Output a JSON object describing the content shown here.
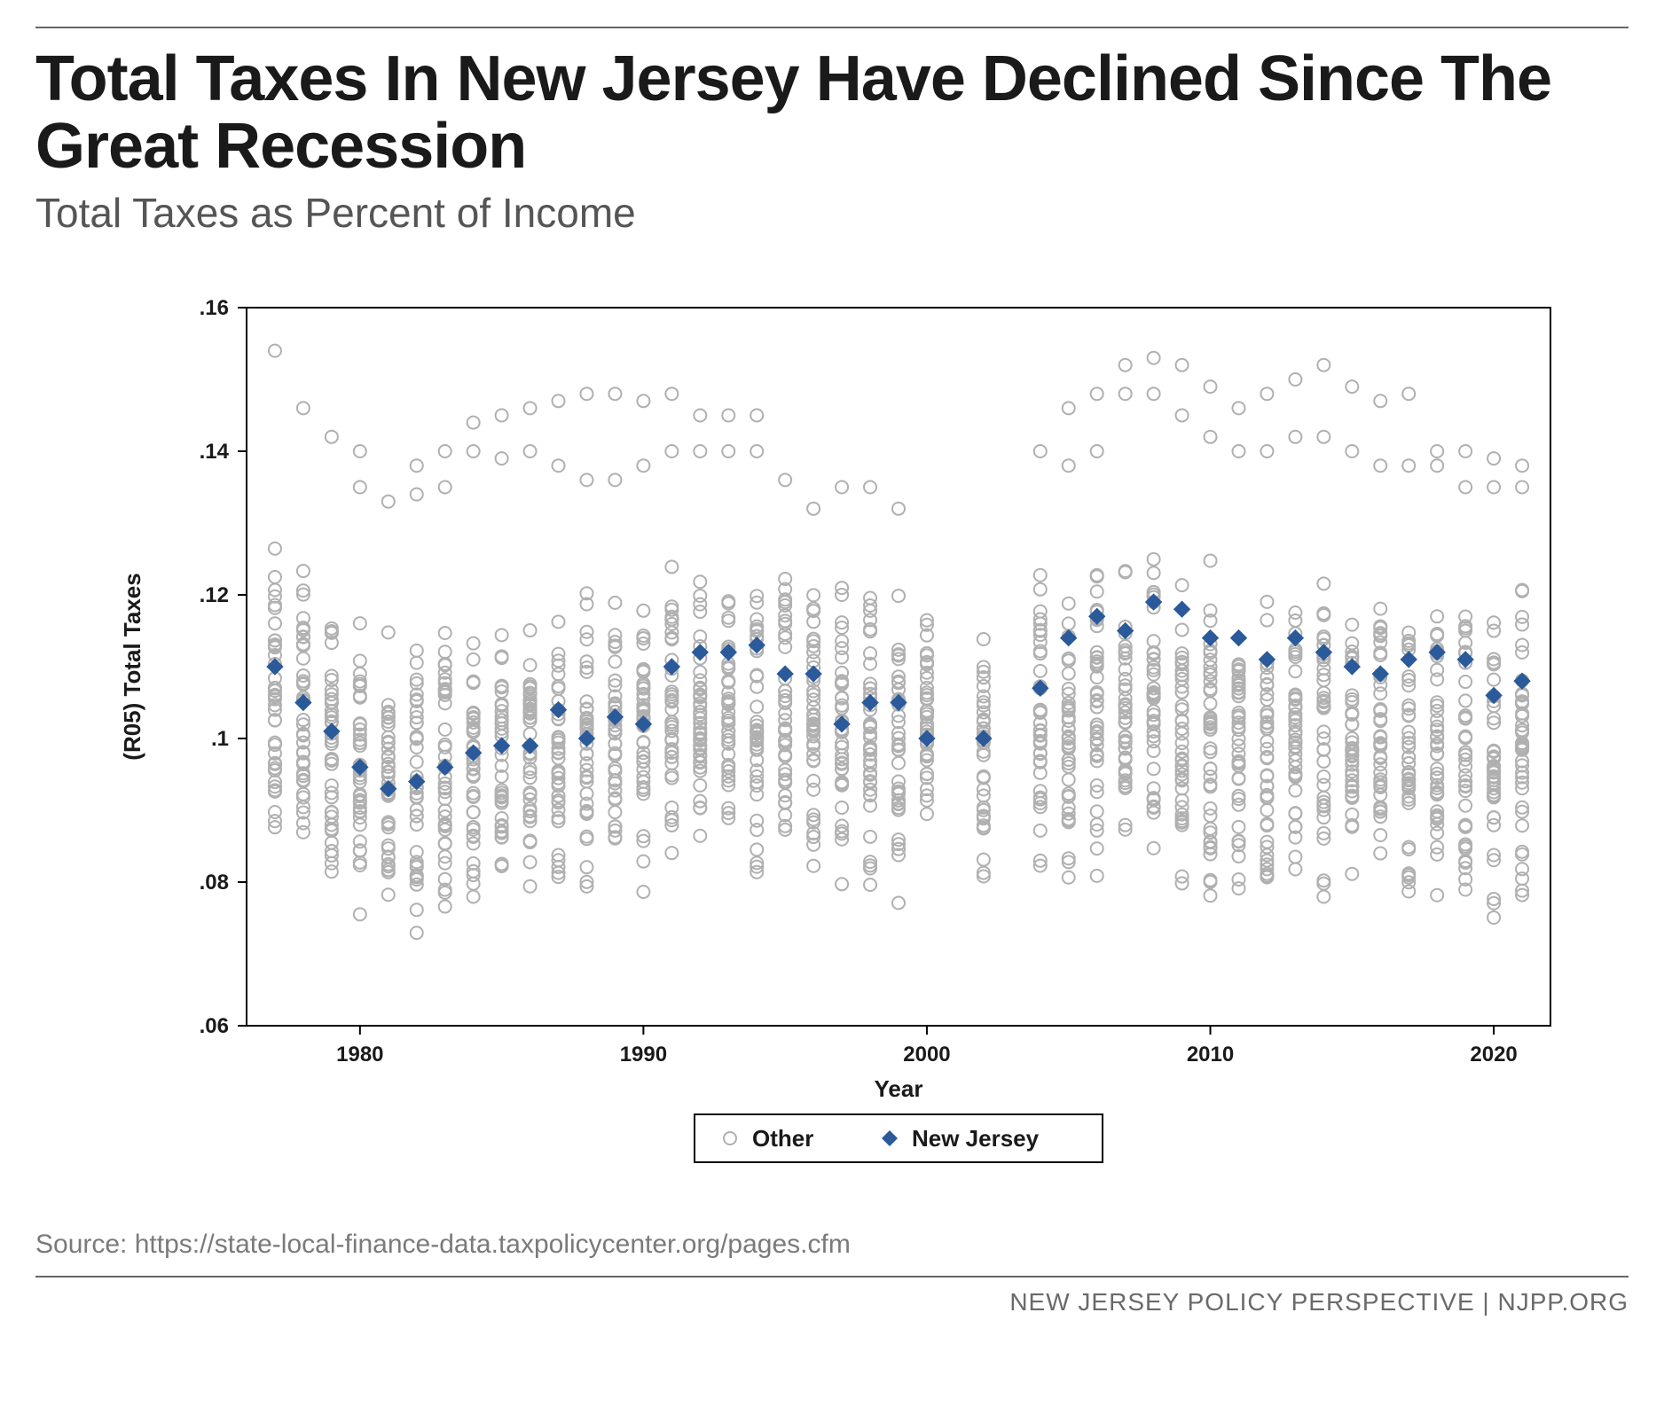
{
  "title": "Total Taxes In New Jersey Have Declined Since The Great Recession",
  "subtitle": "Total Taxes as Percent of Income",
  "source": "Source: https://state-local-finance-data.taxpolicycenter.org/pages.cfm",
  "footer": "NEW JERSEY POLICY PERSPECTIVE | NJPP.ORG",
  "legend": {
    "other": "Other",
    "nj": "New Jersey"
  },
  "chart": {
    "type": "scatter",
    "xlabel": "Year",
    "ylabel": "(R05) Total Taxes",
    "xlim": [
      1976,
      2022
    ],
    "ylim": [
      0.06,
      0.16
    ],
    "xticks": [
      1980,
      1990,
      2000,
      2010,
      2020
    ],
    "yticks": [
      0.06,
      0.08,
      0.1,
      0.12,
      0.14,
      0.16
    ],
    "ytick_labels": [
      ".06",
      ".08",
      ".1",
      ".12",
      ".14",
      ".16"
    ],
    "axis_fontsize": 26,
    "tick_fontsize": 24,
    "plot_border_color": "#000000",
    "plot_bg": "#ffffff",
    "other_marker": {
      "shape": "circle-open",
      "stroke": "#b0b0b0",
      "fill": "none",
      "r": 7,
      "sw": 2
    },
    "nj_marker": {
      "shape": "diamond",
      "fill": "#2a5a9a",
      "stroke": "#2a5a9a",
      "size": 18
    },
    "text_color": "#1a1a1a",
    "nj_series": [
      {
        "x": 1977,
        "y": 0.11
      },
      {
        "x": 1978,
        "y": 0.105
      },
      {
        "x": 1979,
        "y": 0.101
      },
      {
        "x": 1980,
        "y": 0.096
      },
      {
        "x": 1981,
        "y": 0.093
      },
      {
        "x": 1982,
        "y": 0.094
      },
      {
        "x": 1983,
        "y": 0.096
      },
      {
        "x": 1984,
        "y": 0.098
      },
      {
        "x": 1985,
        "y": 0.099
      },
      {
        "x": 1986,
        "y": 0.099
      },
      {
        "x": 1987,
        "y": 0.104
      },
      {
        "x": 1988,
        "y": 0.1
      },
      {
        "x": 1989,
        "y": 0.103
      },
      {
        "x": 1990,
        "y": 0.102
      },
      {
        "x": 1991,
        "y": 0.11
      },
      {
        "x": 1992,
        "y": 0.112
      },
      {
        "x": 1993,
        "y": 0.112
      },
      {
        "x": 1994,
        "y": 0.113
      },
      {
        "x": 1995,
        "y": 0.109
      },
      {
        "x": 1996,
        "y": 0.109
      },
      {
        "x": 1997,
        "y": 0.102
      },
      {
        "x": 1998,
        "y": 0.105
      },
      {
        "x": 1999,
        "y": 0.105
      },
      {
        "x": 2000,
        "y": 0.1
      },
      {
        "x": 2002,
        "y": 0.1
      },
      {
        "x": 2004,
        "y": 0.107
      },
      {
        "x": 2005,
        "y": 0.114
      },
      {
        "x": 2006,
        "y": 0.117
      },
      {
        "x": 2007,
        "y": 0.115
      },
      {
        "x": 2008,
        "y": 0.119
      },
      {
        "x": 2009,
        "y": 0.118
      },
      {
        "x": 2010,
        "y": 0.114
      },
      {
        "x": 2011,
        "y": 0.114
      },
      {
        "x": 2012,
        "y": 0.111
      },
      {
        "x": 2013,
        "y": 0.114
      },
      {
        "x": 2014,
        "y": 0.112
      },
      {
        "x": 2015,
        "y": 0.11
      },
      {
        "x": 2016,
        "y": 0.109
      },
      {
        "x": 2017,
        "y": 0.111
      },
      {
        "x": 2018,
        "y": 0.112
      },
      {
        "x": 2019,
        "y": 0.111
      },
      {
        "x": 2020,
        "y": 0.106
      },
      {
        "x": 2021,
        "y": 0.108
      }
    ],
    "other_ranges": [
      {
        "x": 1977,
        "lo": 0.083,
        "hi": 0.13,
        "extras": [
          0.154
        ]
      },
      {
        "x": 1978,
        "lo": 0.083,
        "hi": 0.125,
        "extras": [
          0.146
        ]
      },
      {
        "x": 1979,
        "lo": 0.08,
        "hi": 0.12,
        "extras": [
          0.142
        ]
      },
      {
        "x": 1980,
        "lo": 0.074,
        "hi": 0.118,
        "extras": [
          0.135,
          0.14
        ]
      },
      {
        "x": 1981,
        "lo": 0.074,
        "hi": 0.115,
        "extras": [
          0.133
        ]
      },
      {
        "x": 1982,
        "lo": 0.072,
        "hi": 0.117,
        "extras": [
          0.134,
          0.138
        ]
      },
      {
        "x": 1983,
        "lo": 0.071,
        "hi": 0.118,
        "extras": [
          0.135,
          0.14
        ]
      },
      {
        "x": 1984,
        "lo": 0.073,
        "hi": 0.118,
        "extras": [
          0.14,
          0.144
        ]
      },
      {
        "x": 1985,
        "lo": 0.075,
        "hi": 0.118,
        "extras": [
          0.139,
          0.145
        ]
      },
      {
        "x": 1986,
        "lo": 0.076,
        "hi": 0.12,
        "extras": [
          0.14,
          0.146
        ]
      },
      {
        "x": 1987,
        "lo": 0.076,
        "hi": 0.121,
        "extras": [
          0.138,
          0.147
        ]
      },
      {
        "x": 1988,
        "lo": 0.076,
        "hi": 0.122,
        "extras": [
          0.136,
          0.148
        ]
      },
      {
        "x": 1989,
        "lo": 0.077,
        "hi": 0.123,
        "extras": [
          0.136,
          0.148
        ]
      },
      {
        "x": 1990,
        "lo": 0.078,
        "hi": 0.123,
        "extras": [
          0.138,
          0.147
        ]
      },
      {
        "x": 1991,
        "lo": 0.078,
        "hi": 0.125,
        "extras": [
          0.14,
          0.148
        ]
      },
      {
        "x": 1992,
        "lo": 0.078,
        "hi": 0.125,
        "extras": [
          0.14,
          0.145
        ]
      },
      {
        "x": 1993,
        "lo": 0.079,
        "hi": 0.125,
        "extras": [
          0.14,
          0.145
        ]
      },
      {
        "x": 1994,
        "lo": 0.079,
        "hi": 0.125,
        "extras": [
          0.14,
          0.145
        ]
      },
      {
        "x": 1995,
        "lo": 0.078,
        "hi": 0.125,
        "extras": [
          0.136
        ]
      },
      {
        "x": 1996,
        "lo": 0.078,
        "hi": 0.123,
        "extras": [
          0.132
        ]
      },
      {
        "x": 1997,
        "lo": 0.078,
        "hi": 0.122,
        "extras": [
          0.135
        ]
      },
      {
        "x": 1998,
        "lo": 0.076,
        "hi": 0.123,
        "extras": [
          0.135
        ]
      },
      {
        "x": 1999,
        "lo": 0.075,
        "hi": 0.123,
        "extras": [
          0.132
        ]
      },
      {
        "x": 2000,
        "lo": 0.075,
        "hi": 0.124,
        "extras": []
      },
      {
        "x": 2002,
        "lo": 0.076,
        "hi": 0.125,
        "extras": []
      },
      {
        "x": 2004,
        "lo": 0.077,
        "hi": 0.124,
        "extras": [
          0.14
        ]
      },
      {
        "x": 2005,
        "lo": 0.078,
        "hi": 0.126,
        "extras": [
          0.138,
          0.146
        ]
      },
      {
        "x": 2006,
        "lo": 0.078,
        "hi": 0.128,
        "extras": [
          0.14,
          0.148
        ]
      },
      {
        "x": 2007,
        "lo": 0.078,
        "hi": 0.128,
        "extras": [
          0.148,
          0.152
        ]
      },
      {
        "x": 2008,
        "lo": 0.079,
        "hi": 0.128,
        "extras": [
          0.148,
          0.153
        ]
      },
      {
        "x": 2009,
        "lo": 0.075,
        "hi": 0.125,
        "extras": [
          0.145,
          0.152
        ]
      },
      {
        "x": 2010,
        "lo": 0.075,
        "hi": 0.125,
        "extras": [
          0.142,
          0.149
        ]
      },
      {
        "x": 2011,
        "lo": 0.075,
        "hi": 0.123,
        "extras": [
          0.14,
          0.146
        ]
      },
      {
        "x": 2012,
        "lo": 0.074,
        "hi": 0.123,
        "extras": [
          0.14,
          0.148
        ]
      },
      {
        "x": 2013,
        "lo": 0.075,
        "hi": 0.123,
        "extras": [
          0.142,
          0.15
        ]
      },
      {
        "x": 2014,
        "lo": 0.076,
        "hi": 0.123,
        "extras": [
          0.142,
          0.152
        ]
      },
      {
        "x": 2015,
        "lo": 0.076,
        "hi": 0.122,
        "extras": [
          0.14,
          0.149
        ]
      },
      {
        "x": 2016,
        "lo": 0.076,
        "hi": 0.122,
        "extras": [
          0.138,
          0.147
        ]
      },
      {
        "x": 2017,
        "lo": 0.076,
        "hi": 0.12,
        "extras": [
          0.138,
          0.148
        ]
      },
      {
        "x": 2018,
        "lo": 0.074,
        "hi": 0.12,
        "extras": [
          0.138,
          0.14
        ]
      },
      {
        "x": 2019,
        "lo": 0.074,
        "hi": 0.12,
        "extras": [
          0.135,
          0.14
        ]
      },
      {
        "x": 2020,
        "lo": 0.071,
        "hi": 0.12,
        "extras": [
          0.135,
          0.139
        ]
      },
      {
        "x": 2021,
        "lo": 0.07,
        "hi": 0.122,
        "extras": [
          0.135,
          0.138
        ]
      }
    ],
    "other_cluster_count": 40
  },
  "colors": {
    "title": "#1a1a1a",
    "subtitle": "#555555",
    "rule": "#666666",
    "source": "#7a7a7a",
    "footer": "#6a6a6a",
    "other": "#b0b0b0",
    "nj": "#2a5a9a",
    "legend_border": "#000000"
  }
}
